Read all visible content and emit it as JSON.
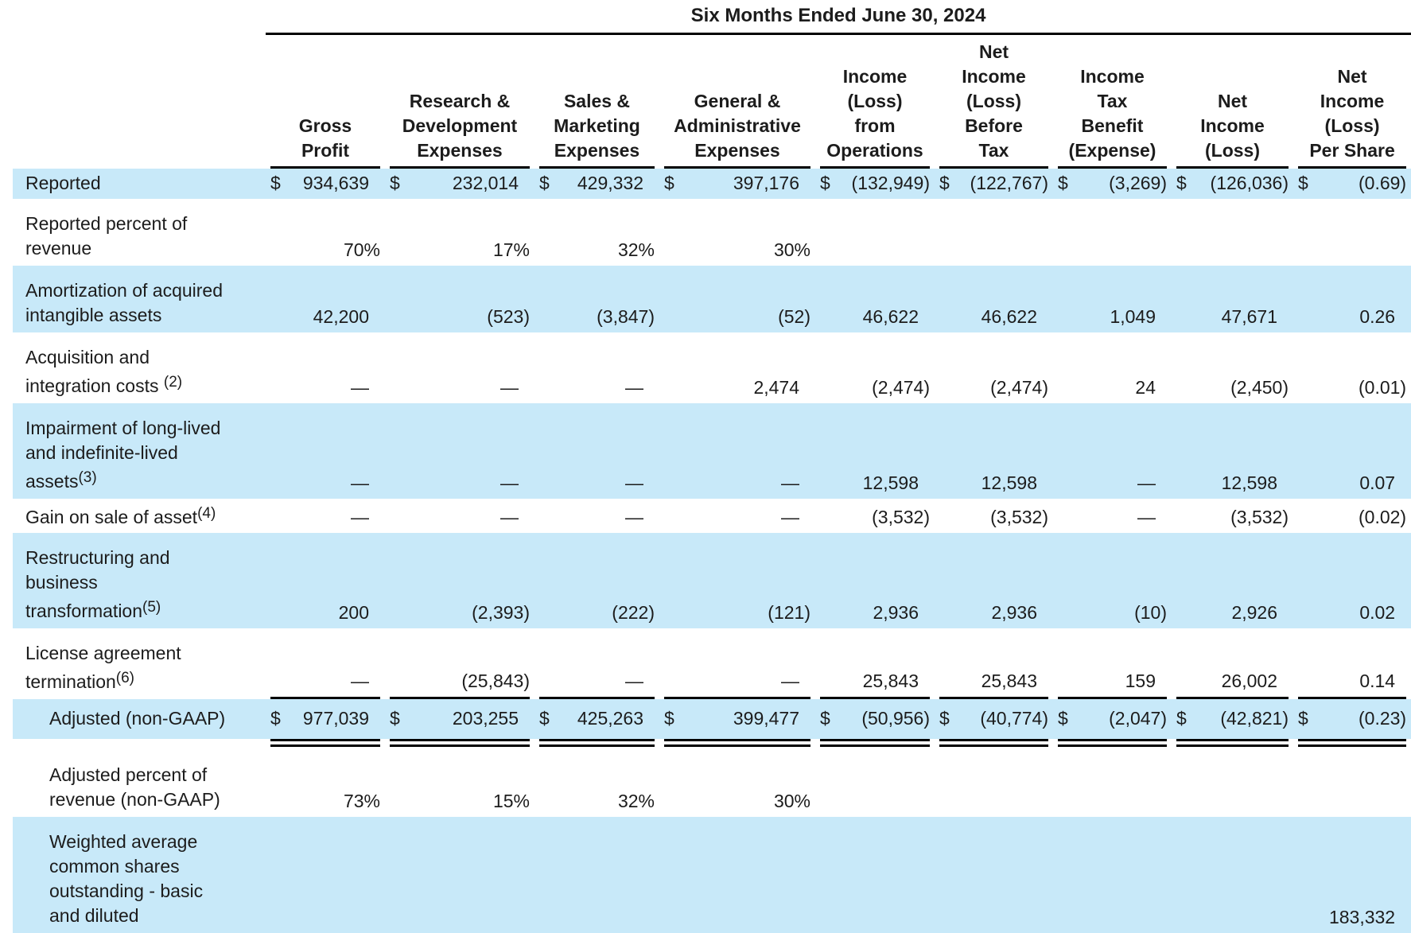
{
  "table": {
    "title": "Six Months Ended June 30, 2024",
    "columns": [
      {
        "lines": [
          "Gross",
          "Profit"
        ]
      },
      {
        "lines": [
          "Research &",
          "Development",
          "Expenses"
        ]
      },
      {
        "lines": [
          "Sales &",
          "Marketing",
          "Expenses"
        ]
      },
      {
        "lines": [
          "General &",
          "Administrative",
          "Expenses"
        ]
      },
      {
        "lines": [
          "Income",
          "(Loss)",
          "from",
          "Operations"
        ]
      },
      {
        "lines": [
          "Net",
          "Income",
          "(Loss)",
          "Before",
          "Tax"
        ]
      },
      {
        "lines": [
          "Income",
          "Tax",
          "Benefit",
          "(Expense)"
        ]
      },
      {
        "lines": [
          "Net",
          "Income",
          "(Loss)"
        ]
      },
      {
        "lines": [
          "Net",
          "Income",
          "(Loss)",
          "Per Share"
        ]
      }
    ],
    "rows": [
      {
        "label_lines": [
          "Reported"
        ],
        "dollar": true,
        "values": [
          "934,639",
          "232,014",
          "429,332",
          "397,176",
          "(132,949)",
          "(122,767)",
          "(3,269)",
          "(126,036)",
          "(0.69)"
        ]
      },
      {
        "label_lines": [
          "Reported percent of",
          "revenue"
        ],
        "values": [
          "70%",
          "17%",
          "32%",
          "30%",
          "",
          "",
          "",
          "",
          ""
        ]
      },
      {
        "label_lines": [
          "Amortization of acquired",
          "intangible assets"
        ],
        "values": [
          "42,200",
          "(523)",
          "(3,847)",
          "(52)",
          "46,622",
          "46,622",
          "1,049",
          "47,671",
          "0.26"
        ]
      },
      {
        "label_lines": [
          "Acquisition and",
          "integration costs"
        ],
        "sup": "(2)",
        "sup_space": true,
        "values": [
          "—",
          "—",
          "—",
          "2,474",
          "(2,474)",
          "(2,474)",
          "24",
          "(2,450)",
          "(0.01)"
        ]
      },
      {
        "label_lines": [
          "Impairment of long-lived",
          "and indefinite-lived",
          "assets"
        ],
        "sup": "(3)",
        "values": [
          "—",
          "—",
          "—",
          "—",
          "12,598",
          "12,598",
          "—",
          "12,598",
          "0.07"
        ]
      },
      {
        "label_lines": [
          "Gain on sale of asset"
        ],
        "sup": "(4)",
        "values": [
          "—",
          "—",
          "—",
          "—",
          "(3,532)",
          "(3,532)",
          "—",
          "(3,532)",
          "(0.02)"
        ]
      },
      {
        "label_lines": [
          "Restructuring and",
          "business",
          "transformation"
        ],
        "sup": "(5)",
        "values": [
          "200",
          "(2,393)",
          "(222)",
          "(121)",
          "2,936",
          "2,936",
          "(10)",
          "2,926",
          "0.02"
        ]
      },
      {
        "label_lines": [
          "License agreement",
          "termination"
        ],
        "sup": "(6)",
        "rule_below": true,
        "values": [
          "—",
          "(25,843)",
          "—",
          "—",
          "25,843",
          "25,843",
          "159",
          "26,002",
          "0.14"
        ]
      },
      {
        "label_lines": [
          "Adjusted (non-GAAP)"
        ],
        "indent": true,
        "dollar": true,
        "total": true,
        "double_below": true,
        "values": [
          "977,039",
          "203,255",
          "425,263",
          "399,477",
          "(50,956)",
          "(40,774)",
          "(2,047)",
          "(42,821)",
          "(0.23)"
        ]
      },
      {
        "label_lines": [
          "Adjusted percent of",
          "revenue (non-GAAP)"
        ],
        "indent": true,
        "values": [
          "73%",
          "15%",
          "32%",
          "30%",
          "",
          "",
          "",
          "",
          ""
        ]
      },
      {
        "label_lines": [
          "Weighted average",
          "common shares",
          "outstanding - basic",
          "and diluted"
        ],
        "indent": true,
        "values": [
          "",
          "",
          "",
          "",
          "",
          "",
          "",
          "",
          "183,332"
        ]
      }
    ],
    "shade_color": "#c8e9f9",
    "text_color": "#1c1c1c"
  }
}
